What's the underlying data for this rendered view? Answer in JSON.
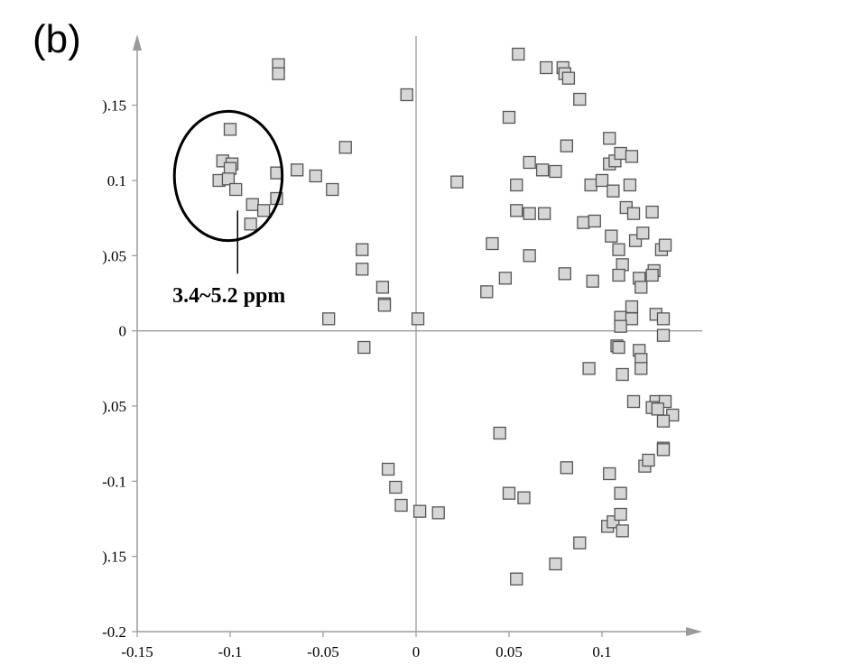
{
  "panel_label": "(b)",
  "chart_data": {
    "type": "scatter",
    "title": "",
    "xlabel": "",
    "ylabel": "",
    "xlim": [
      -0.15,
      0.15
    ],
    "ylim": [
      -0.2,
      0.19
    ],
    "x_ticks": [
      {
        "value": -0.15,
        "label": "-0.15"
      },
      {
        "value": -0.1,
        "label": "-0.1"
      },
      {
        "value": -0.05,
        "label": "-0.05"
      },
      {
        "value": 0,
        "label": "0"
      },
      {
        "value": 0.05,
        "label": "0.05"
      },
      {
        "value": 0.1,
        "label": "0.1"
      }
    ],
    "y_ticks": [
      {
        "value": 0.15,
        "label": ").15"
      },
      {
        "value": 0.1,
        "label": "0.1"
      },
      {
        "value": 0.05,
        "label": ").05"
      },
      {
        "value": 0,
        "label": "0"
      },
      {
        "value": -0.05,
        "label": ").05"
      },
      {
        "value": -0.1,
        "label": "-0.1"
      },
      {
        "value": -0.15,
        "label": ").15"
      },
      {
        "value": -0.2,
        "label": "-0.2"
      }
    ],
    "marker": {
      "shape": "square",
      "fill": "#d6d6d6",
      "stroke": "#555555"
    },
    "annotation": {
      "text": "3.4~5.2 ppm",
      "ellipse_center": [
        -0.101,
        0.103
      ],
      "ellipse_radii": [
        0.029,
        0.043
      ],
      "leader_from": [
        -0.096,
        0.08
      ],
      "leader_to": [
        -0.096,
        0.038
      ],
      "text_anchor": [
        -0.131,
        0.019
      ]
    },
    "points": [
      [
        -0.1,
        0.134
      ],
      [
        -0.104,
        0.113
      ],
      [
        -0.099,
        0.111
      ],
      [
        -0.1,
        0.108
      ],
      [
        -0.106,
        0.1
      ],
      [
        -0.101,
        0.101
      ],
      [
        -0.097,
        0.094
      ],
      [
        -0.088,
        0.084
      ],
      [
        -0.082,
        0.08
      ],
      [
        -0.075,
        0.088
      ],
      [
        -0.075,
        0.105
      ],
      [
        -0.064,
        0.107
      ],
      [
        -0.089,
        0.071
      ],
      [
        -0.074,
        0.177
      ],
      [
        -0.074,
        0.171
      ],
      [
        -0.054,
        0.103
      ],
      [
        -0.045,
        0.094
      ],
      [
        -0.038,
        0.122
      ],
      [
        -0.005,
        0.157
      ],
      [
        -0.029,
        0.054
      ],
      [
        -0.029,
        0.041
      ],
      [
        -0.018,
        0.029
      ],
      [
        -0.017,
        0.018
      ],
      [
        -0.017,
        0.017
      ],
      [
        -0.047,
        0.008
      ],
      [
        0.001,
        0.008
      ],
      [
        -0.028,
        -0.011
      ],
      [
        -0.015,
        -0.092
      ],
      [
        -0.011,
        -0.104
      ],
      [
        -0.008,
        -0.116
      ],
      [
        0.002,
        -0.12
      ],
      [
        0.012,
        -0.121
      ],
      [
        0.022,
        0.099
      ],
      [
        0.055,
        0.184
      ],
      [
        0.07,
        0.175
      ],
      [
        0.079,
        0.175
      ],
      [
        0.08,
        0.171
      ],
      [
        0.082,
        0.168
      ],
      [
        0.088,
        0.154
      ],
      [
        0.05,
        0.142
      ],
      [
        0.081,
        0.123
      ],
      [
        0.061,
        0.112
      ],
      [
        0.068,
        0.107
      ],
      [
        0.075,
        0.106
      ],
      [
        0.054,
        0.097
      ],
      [
        0.054,
        0.08
      ],
      [
        0.061,
        0.078
      ],
      [
        0.069,
        0.078
      ],
      [
        0.041,
        0.058
      ],
      [
        0.061,
        0.05
      ],
      [
        0.038,
        0.026
      ],
      [
        0.048,
        0.035
      ],
      [
        0.08,
        0.038
      ],
      [
        0.045,
        -0.068
      ],
      [
        0.05,
        -0.108
      ],
      [
        0.058,
        -0.111
      ],
      [
        0.054,
        -0.165
      ],
      [
        0.075,
        -0.155
      ],
      [
        0.081,
        -0.091
      ],
      [
        0.088,
        -0.141
      ],
      [
        0.093,
        -0.025
      ],
      [
        0.095,
        0.033
      ],
      [
        0.094,
        0.097
      ],
      [
        0.1,
        0.1
      ],
      [
        0.09,
        0.072
      ],
      [
        0.096,
        0.073
      ],
      [
        0.104,
        0.128
      ],
      [
        0.104,
        0.111
      ],
      [
        0.107,
        0.113
      ],
      [
        0.11,
        0.118
      ],
      [
        0.116,
        0.116
      ],
      [
        0.115,
        0.097
      ],
      [
        0.106,
        0.093
      ],
      [
        0.113,
        0.082
      ],
      [
        0.117,
        0.078
      ],
      [
        0.105,
        0.063
      ],
      [
        0.109,
        0.054
      ],
      [
        0.118,
        0.06
      ],
      [
        0.122,
        0.065
      ],
      [
        0.127,
        0.079
      ],
      [
        0.111,
        0.044
      ],
      [
        0.109,
        0.037
      ],
      [
        0.12,
        0.035
      ],
      [
        0.121,
        0.029
      ],
      [
        0.128,
        0.04
      ],
      [
        0.132,
        0.054
      ],
      [
        0.134,
        0.057
      ],
      [
        0.127,
        0.037
      ],
      [
        0.116,
        0.016
      ],
      [
        0.11,
        0.009
      ],
      [
        0.116,
        0.008
      ],
      [
        0.11,
        0.003
      ],
      [
        0.129,
        0.011
      ],
      [
        0.133,
        0.008
      ],
      [
        0.133,
        -0.003
      ],
      [
        0.108,
        -0.01
      ],
      [
        0.109,
        -0.011
      ],
      [
        0.12,
        -0.013
      ],
      [
        0.121,
        -0.019
      ],
      [
        0.121,
        -0.025
      ],
      [
        0.111,
        -0.029
      ],
      [
        0.117,
        -0.047
      ],
      [
        0.129,
        -0.047
      ],
      [
        0.134,
        -0.047
      ],
      [
        0.127,
        -0.051
      ],
      [
        0.13,
        -0.052
      ],
      [
        0.138,
        -0.056
      ],
      [
        0.133,
        -0.06
      ],
      [
        0.104,
        -0.095
      ],
      [
        0.11,
        -0.108
      ],
      [
        0.123,
        -0.09
      ],
      [
        0.125,
        -0.086
      ],
      [
        0.133,
        -0.078
      ],
      [
        0.133,
        -0.079
      ],
      [
        0.103,
        -0.13
      ],
      [
        0.106,
        -0.127
      ],
      [
        0.11,
        -0.122
      ],
      [
        0.111,
        -0.133
      ]
    ]
  }
}
